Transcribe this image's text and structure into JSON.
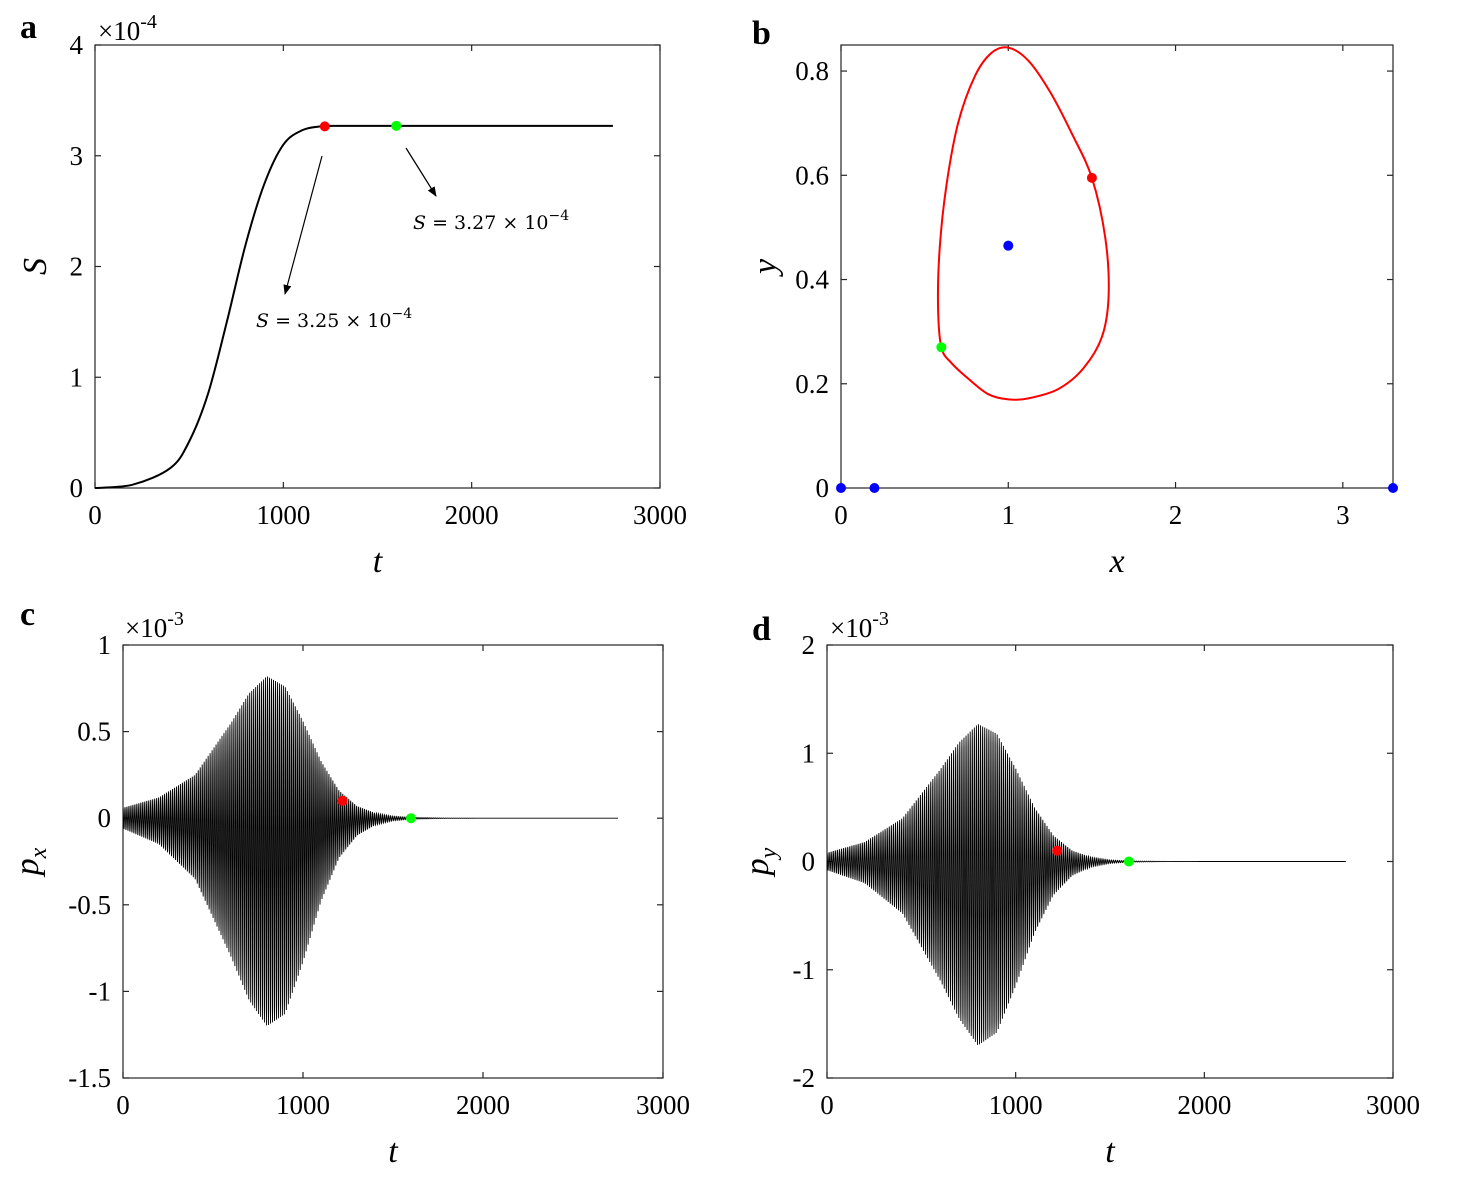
{
  "chart_data": [
    {
      "panel": "a",
      "type": "line",
      "xlabel": "t",
      "ylabel": "S",
      "xlim": [
        0,
        3000
      ],
      "ylim": [
        0,
        4
      ],
      "xticks": [
        "0",
        "1000",
        "2000",
        "3000"
      ],
      "yticks": [
        "0",
        "1",
        "2",
        "3",
        "4"
      ],
      "y_exponent": "-4",
      "y_exponent_base": "×10",
      "series": [
        {
          "color": "#000000",
          "x": [
            0,
            200,
            400,
            500,
            600,
            700,
            800,
            900,
            1000,
            1100,
            1200,
            1300,
            1500,
            2000,
            2500,
            2750
          ],
          "y": [
            0,
            0.03,
            0.18,
            0.42,
            0.85,
            1.5,
            2.2,
            2.75,
            3.1,
            3.23,
            3.265,
            3.27,
            3.27,
            3.27,
            3.27,
            3.27
          ]
        }
      ],
      "markers": [
        {
          "color": "#ff0000",
          "x": 1220,
          "y": 3.265
        },
        {
          "color": "#00ff00",
          "x": 1600,
          "y": 3.27
        }
      ],
      "annotations": [
        {
          "prefix": "S",
          "text": " = 3.25 × 10",
          "sup": "−4"
        },
        {
          "prefix": "S",
          "text": " = 3.27 × 10",
          "sup": "−4"
        }
      ]
    },
    {
      "panel": "b",
      "type": "line",
      "xlabel": "x",
      "ylabel": "y",
      "xlim": [
        0,
        3.3
      ],
      "ylim": [
        0,
        0.85
      ],
      "xticks": [
        "0",
        "1",
        "2",
        "3"
      ],
      "yticks": [
        "0",
        "0.2",
        "0.4",
        "0.6",
        "0.8"
      ],
      "series": [
        {
          "color": "#ff0000",
          "closed": true,
          "x": [
            1.0,
            1.12,
            1.25,
            1.38,
            1.5,
            1.58,
            1.6,
            1.56,
            1.45,
            1.3,
            1.12,
            1.0,
            0.88,
            0.76,
            0.66,
            0.6,
            0.58,
            0.59,
            0.63,
            0.7,
            0.8,
            0.9,
            1.0
          ],
          "y": [
            0.845,
            0.82,
            0.76,
            0.68,
            0.595,
            0.48,
            0.37,
            0.29,
            0.23,
            0.19,
            0.172,
            0.17,
            0.18,
            0.21,
            0.24,
            0.27,
            0.35,
            0.46,
            0.58,
            0.7,
            0.79,
            0.835,
            0.845
          ]
        }
      ],
      "markers": [
        {
          "color": "#ff0000",
          "x": 1.5,
          "y": 0.595
        },
        {
          "color": "#00ff00",
          "x": 0.6,
          "y": 0.27
        },
        {
          "color": "#0000ff",
          "x": 1.0,
          "y": 0.465
        },
        {
          "color": "#0000ff",
          "x": 0.0,
          "y": 0.0
        },
        {
          "color": "#0000ff",
          "x": 0.2,
          "y": 0.0
        },
        {
          "color": "#0000ff",
          "x": 3.3,
          "y": 0.0
        }
      ]
    },
    {
      "panel": "c",
      "type": "line",
      "xlabel": "t",
      "ylabel": "p",
      "ylabel_sub": "x",
      "xlim": [
        0,
        3000
      ],
      "ylim": [
        -1.5,
        1
      ],
      "xticks": [
        "0",
        "1000",
        "2000",
        "3000"
      ],
      "yticks": [
        "-1.5",
        "-1",
        "-0.5",
        "0",
        "0.5",
        "1"
      ],
      "y_exponent": "-3",
      "y_exponent_base": "×10",
      "envelope": {
        "x": [
          0,
          200,
          400,
          600,
          700,
          800,
          900,
          1000,
          1100,
          1200,
          1300,
          1400,
          1500,
          1600,
          1800,
          2000,
          2750
        ],
        "upper": [
          0.06,
          0.12,
          0.25,
          0.55,
          0.72,
          0.82,
          0.76,
          0.56,
          0.33,
          0.16,
          0.07,
          0.03,
          0.012,
          0.005,
          0.001,
          0,
          0
        ],
        "lower": [
          -0.06,
          -0.15,
          -0.35,
          -0.8,
          -1.05,
          -1.2,
          -1.13,
          -0.83,
          -0.48,
          -0.23,
          -0.1,
          -0.04,
          -0.015,
          -0.006,
          -0.001,
          0,
          0
        ]
      },
      "oscillation_period": 11,
      "markers": [
        {
          "color": "#ff0000",
          "x": 1220,
          "y": 0.1
        },
        {
          "color": "#00ff00",
          "x": 1600,
          "y": 0.0
        }
      ]
    },
    {
      "panel": "d",
      "type": "line",
      "xlabel": "t",
      "ylabel": "p",
      "ylabel_sub": "y",
      "xlim": [
        0,
        3000
      ],
      "ylim": [
        -2,
        2
      ],
      "xticks": [
        "0",
        "1000",
        "2000",
        "3000"
      ],
      "yticks": [
        "-2",
        "-1",
        "0",
        "1",
        "2"
      ],
      "y_exponent": "-3",
      "y_exponent_base": "×10",
      "envelope": {
        "x": [
          0,
          200,
          400,
          600,
          700,
          800,
          900,
          1000,
          1100,
          1200,
          1300,
          1400,
          1500,
          1600,
          1800,
          2000,
          2750
        ],
        "upper": [
          0.08,
          0.18,
          0.4,
          0.85,
          1.1,
          1.27,
          1.18,
          0.86,
          0.5,
          0.24,
          0.1,
          0.04,
          0.015,
          0.005,
          0.001,
          0,
          0
        ],
        "lower": [
          -0.08,
          -0.2,
          -0.48,
          -1.1,
          -1.45,
          -1.7,
          -1.58,
          -1.15,
          -0.66,
          -0.31,
          -0.13,
          -0.05,
          -0.018,
          -0.006,
          -0.001,
          0,
          0
        ]
      },
      "oscillation_period": 11,
      "markers": [
        {
          "color": "#ff0000",
          "x": 1220,
          "y": 0.1
        },
        {
          "color": "#00ff00",
          "x": 1600,
          "y": 0.0
        }
      ]
    }
  ]
}
